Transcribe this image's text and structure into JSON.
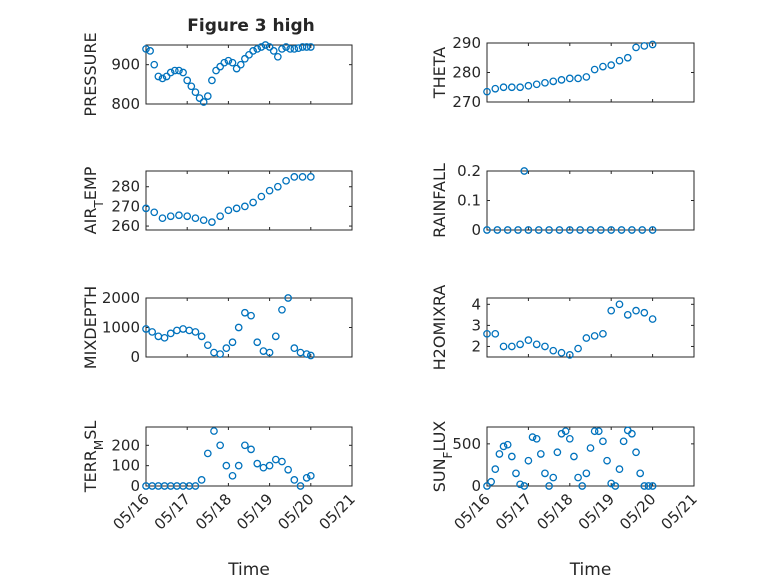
{
  "figure": {
    "title": "Figure 3 high"
  },
  "chart_data": [
    {
      "type": "scatter",
      "ylabel": "PRESSURE",
      "xlim": [
        0,
        5
      ],
      "ylim": [
        800,
        950
      ],
      "yticks": [
        800,
        900
      ],
      "x_tick_labels": [
        "05/16",
        "05/17",
        "05/18",
        "05/19",
        "05/20",
        "05/21"
      ],
      "x_tick_labels_visible": false,
      "grid": true,
      "title": "Figure 3 high",
      "series": [
        {
          "x": [
            0.0,
            0.1,
            0.2,
            0.3,
            0.4,
            0.5,
            0.6,
            0.7,
            0.8,
            0.9,
            1.0,
            1.1,
            1.2,
            1.3,
            1.4,
            1.5,
            1.6,
            1.7,
            1.8,
            1.9,
            2.0,
            2.1,
            2.2,
            2.3,
            2.4,
            2.5,
            2.6,
            2.7,
            2.8,
            2.9,
            3.0,
            3.1,
            3.2,
            3.3,
            3.4,
            3.5,
            3.6,
            3.7,
            3.8,
            3.9,
            4.0
          ],
          "values": [
            940,
            935,
            900,
            870,
            865,
            870,
            880,
            885,
            885,
            880,
            860,
            845,
            830,
            815,
            805,
            820,
            860,
            885,
            895,
            905,
            910,
            905,
            890,
            900,
            915,
            925,
            935,
            940,
            945,
            950,
            945,
            935,
            920,
            940,
            945,
            940,
            940,
            942,
            945,
            945,
            945
          ]
        }
      ]
    },
    {
      "type": "scatter",
      "ylabel": "THETA",
      "xlim": [
        0,
        5
      ],
      "ylim": [
        270,
        290
      ],
      "yticks": [
        270,
        280,
        290
      ],
      "x_tick_labels": [
        "05/16",
        "05/17",
        "05/18",
        "05/19",
        "05/20",
        "05/21"
      ],
      "x_tick_labels_visible": false,
      "grid": true,
      "series": [
        {
          "x": [
            0.0,
            0.2,
            0.4,
            0.6,
            0.8,
            1.0,
            1.2,
            1.4,
            1.6,
            1.8,
            2.0,
            2.2,
            2.4,
            2.6,
            2.8,
            3.0,
            3.2,
            3.4,
            3.6,
            3.8,
            4.0
          ],
          "values": [
            273.5,
            274.5,
            275,
            275,
            275,
            275.5,
            276,
            276.5,
            277,
            277.5,
            278,
            278,
            278.5,
            281,
            282,
            282.5,
            284,
            285,
            288.5,
            289,
            289.5
          ]
        }
      ]
    },
    {
      "type": "scatter",
      "ylabel": "AIR_TEMP",
      "xlim": [
        0,
        5
      ],
      "ylim": [
        258,
        288
      ],
      "yticks": [
        260,
        270,
        280
      ],
      "x_tick_labels": [
        "05/16",
        "05/17",
        "05/18",
        "05/19",
        "05/20",
        "05/21"
      ],
      "x_tick_labels_visible": false,
      "grid": true,
      "series": [
        {
          "x": [
            0.0,
            0.2,
            0.4,
            0.6,
            0.8,
            1.0,
            1.2,
            1.4,
            1.6,
            1.8,
            2.0,
            2.2,
            2.4,
            2.6,
            2.8,
            3.0,
            3.2,
            3.4,
            3.6,
            3.8,
            4.0
          ],
          "values": [
            269,
            267,
            264,
            265,
            265.5,
            265,
            264,
            263,
            262,
            265,
            268,
            269,
            270,
            272,
            275,
            278,
            280,
            283,
            285,
            285,
            285
          ]
        }
      ]
    },
    {
      "type": "scatter",
      "ylabel": "RAINFALL",
      "xlim": [
        0,
        5
      ],
      "ylim": [
        0,
        0.2
      ],
      "yticks": [
        0,
        0.1,
        0.2
      ],
      "x_tick_labels": [
        "05/16",
        "05/17",
        "05/18",
        "05/19",
        "05/20",
        "05/21"
      ],
      "x_tick_labels_visible": false,
      "grid": true,
      "series": [
        {
          "x": [
            0.0,
            0.25,
            0.5,
            0.75,
            0.9,
            1.0,
            1.25,
            1.5,
            1.75,
            2.0,
            2.25,
            2.5,
            2.75,
            3.0,
            3.25,
            3.5,
            3.75,
            4.0
          ],
          "values": [
            0,
            0,
            0,
            0,
            0.2,
            0,
            0,
            0,
            0,
            0,
            0,
            0,
            0,
            0,
            0,
            0,
            0,
            0
          ]
        }
      ]
    },
    {
      "type": "scatter",
      "ylabel": "MIXDEPTH",
      "xlim": [
        0,
        5
      ],
      "ylim": [
        0,
        2000
      ],
      "yticks": [
        0,
        1000,
        2000
      ],
      "x_tick_labels": [
        "05/16",
        "05/17",
        "05/18",
        "05/19",
        "05/20",
        "05/21"
      ],
      "x_tick_labels_visible": false,
      "grid": true,
      "series": [
        {
          "x": [
            0.0,
            0.15,
            0.3,
            0.45,
            0.6,
            0.75,
            0.9,
            1.05,
            1.2,
            1.35,
            1.5,
            1.65,
            1.8,
            1.95,
            2.1,
            2.25,
            2.4,
            2.55,
            2.7,
            2.85,
            3.0,
            3.15,
            3.3,
            3.45,
            3.6,
            3.75,
            3.9,
            4.0
          ],
          "values": [
            950,
            850,
            700,
            650,
            800,
            900,
            950,
            900,
            850,
            700,
            400,
            150,
            100,
            300,
            500,
            1000,
            1500,
            1400,
            500,
            200,
            150,
            700,
            1600,
            2000,
            300,
            150,
            100,
            50
          ]
        }
      ]
    },
    {
      "type": "scatter",
      "ylabel": "H2OMIXRA",
      "xlim": [
        0,
        5
      ],
      "ylim": [
        1.5,
        4.3
      ],
      "yticks": [
        2,
        3,
        4
      ],
      "x_tick_labels": [
        "05/16",
        "05/17",
        "05/18",
        "05/19",
        "05/20",
        "05/21"
      ],
      "x_tick_labels_visible": false,
      "grid": true,
      "series": [
        {
          "x": [
            0.0,
            0.2,
            0.4,
            0.6,
            0.8,
            1.0,
            1.2,
            1.4,
            1.6,
            1.8,
            2.0,
            2.2,
            2.4,
            2.6,
            2.8,
            3.0,
            3.2,
            3.4,
            3.6,
            3.8,
            4.0
          ],
          "values": [
            2.6,
            2.6,
            2.0,
            2.0,
            2.1,
            2.3,
            2.1,
            2.0,
            1.8,
            1.7,
            1.6,
            1.9,
            2.4,
            2.5,
            2.6,
            3.7,
            4.0,
            3.5,
            3.7,
            3.6,
            3.3
          ]
        }
      ]
    },
    {
      "type": "scatter",
      "ylabel": "TERR_MSL",
      "xlim": [
        0,
        5
      ],
      "ylim": [
        0,
        290
      ],
      "yticks": [
        0,
        100,
        200
      ],
      "x_tick_labels": [
        "05/16",
        "05/17",
        "05/18",
        "05/19",
        "05/20",
        "05/21"
      ],
      "x_tick_labels_visible": true,
      "xlabel": "Time",
      "grid": true,
      "series": [
        {
          "x": [
            0.0,
            0.15,
            0.3,
            0.45,
            0.6,
            0.75,
            0.9,
            1.05,
            1.2,
            1.35,
            1.5,
            1.65,
            1.8,
            1.95,
            2.1,
            2.25,
            2.4,
            2.55,
            2.7,
            2.85,
            3.0,
            3.15,
            3.3,
            3.45,
            3.6,
            3.75,
            3.9,
            4.0
          ],
          "values": [
            0,
            0,
            0,
            0,
            0,
            0,
            0,
            0,
            0,
            30,
            160,
            270,
            200,
            100,
            50,
            100,
            200,
            180,
            110,
            90,
            100,
            130,
            120,
            80,
            30,
            0,
            40,
            50
          ]
        }
      ]
    },
    {
      "type": "scatter",
      "ylabel": "SUN_FLUX",
      "xlim": [
        0,
        5
      ],
      "ylim": [
        0,
        700
      ],
      "yticks": [
        0,
        500
      ],
      "x_tick_labels": [
        "05/16",
        "05/17",
        "05/18",
        "05/19",
        "05/20",
        "05/21"
      ],
      "x_tick_labels_visible": true,
      "xlabel": "Time",
      "grid": true,
      "series": [
        {
          "x": [
            0.0,
            0.1,
            0.2,
            0.3,
            0.4,
            0.5,
            0.6,
            0.7,
            0.8,
            0.9,
            1.0,
            1.1,
            1.2,
            1.3,
            1.4,
            1.5,
            1.6,
            1.7,
            1.8,
            1.9,
            2.0,
            2.1,
            2.2,
            2.3,
            2.4,
            2.5,
            2.6,
            2.7,
            2.8,
            2.9,
            3.0,
            3.1,
            3.2,
            3.3,
            3.4,
            3.5,
            3.6,
            3.7,
            3.8,
            3.9,
            4.0
          ],
          "values": [
            0,
            50,
            200,
            380,
            470,
            490,
            350,
            150,
            20,
            0,
            300,
            580,
            560,
            380,
            150,
            0,
            100,
            400,
            620,
            650,
            560,
            350,
            100,
            0,
            150,
            450,
            650,
            650,
            530,
            300,
            30,
            0,
            200,
            530,
            660,
            620,
            400,
            150,
            0,
            0,
            0
          ]
        }
      ]
    }
  ]
}
